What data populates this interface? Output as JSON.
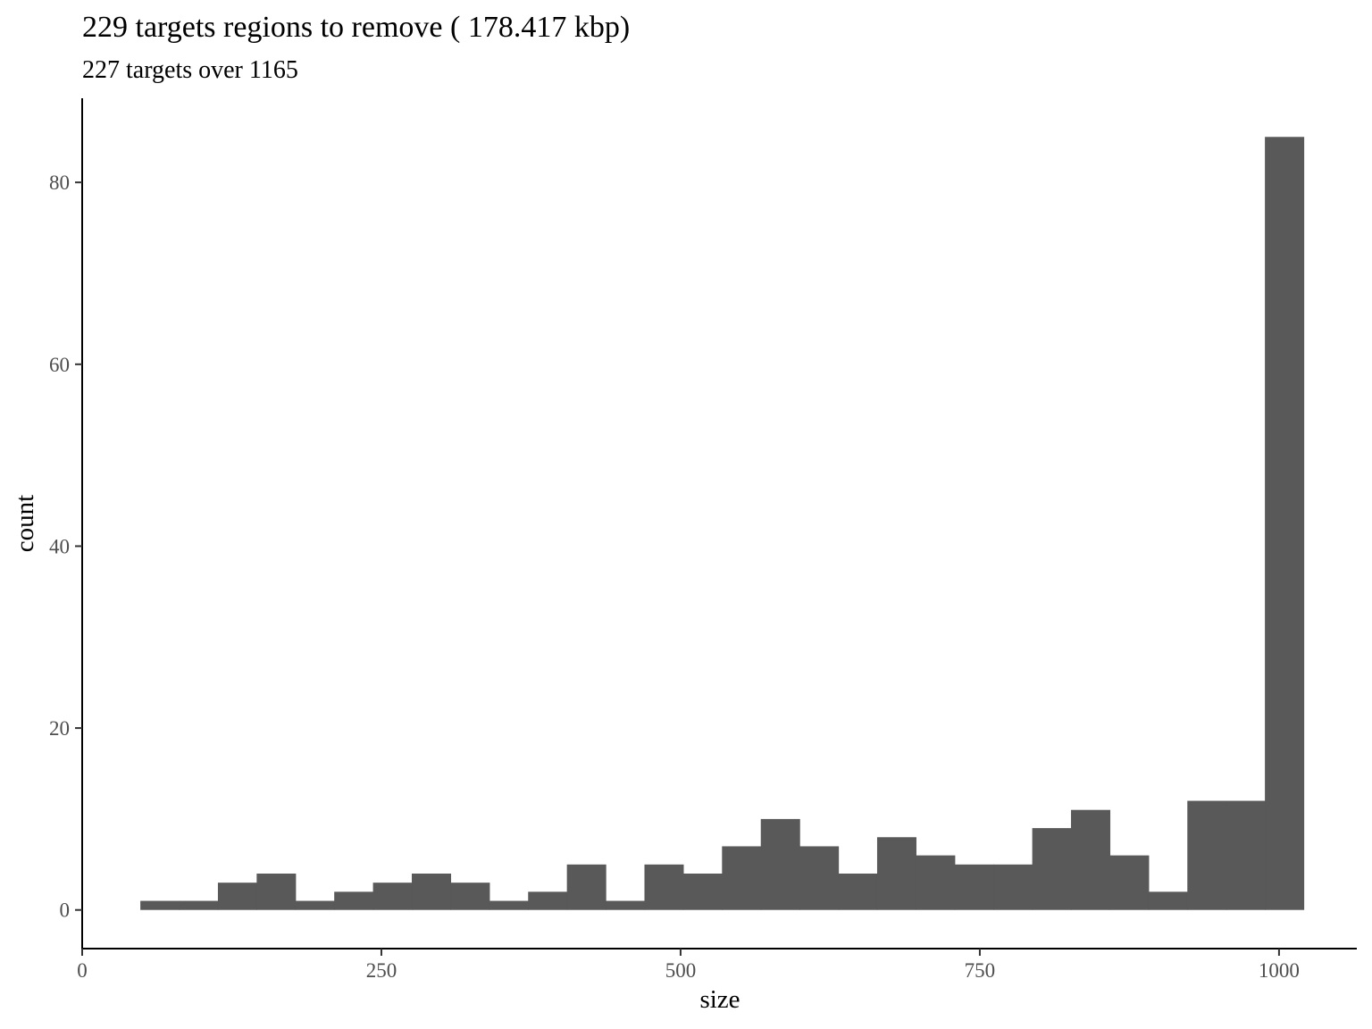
{
  "chart_data": {
    "type": "bar",
    "title": "229 targets regions to remove ( 178.417 kbp)",
    "subtitle": "227 targets over 1165",
    "xlabel": "size",
    "ylabel": "count",
    "xlim": [
      0,
      1065
    ],
    "ylim": [
      -4.25,
      89.25
    ],
    "x_ticks": [
      0,
      250,
      500,
      750,
      1000
    ],
    "y_ticks": [
      0,
      20,
      40,
      60,
      80
    ],
    "bar_color": "#595959",
    "bin_width": 32.4,
    "bins": [
      {
        "start": 48.6,
        "count": 1
      },
      {
        "start": 81.0,
        "count": 1
      },
      {
        "start": 113.4,
        "count": 3
      },
      {
        "start": 145.8,
        "count": 4
      },
      {
        "start": 178.2,
        "count": 1
      },
      {
        "start": 210.6,
        "count": 2
      },
      {
        "start": 243.0,
        "count": 3
      },
      {
        "start": 275.4,
        "count": 4
      },
      {
        "start": 307.8,
        "count": 3
      },
      {
        "start": 340.2,
        "count": 1
      },
      {
        "start": 372.6,
        "count": 2
      },
      {
        "start": 405.0,
        "count": 5
      },
      {
        "start": 437.4,
        "count": 1
      },
      {
        "start": 469.8,
        "count": 5
      },
      {
        "start": 502.2,
        "count": 4
      },
      {
        "start": 534.6,
        "count": 7
      },
      {
        "start": 567.0,
        "count": 10
      },
      {
        "start": 599.4,
        "count": 7
      },
      {
        "start": 631.8,
        "count": 4
      },
      {
        "start": 664.2,
        "count": 8
      },
      {
        "start": 696.6,
        "count": 6
      },
      {
        "start": 729.0,
        "count": 5
      },
      {
        "start": 761.4,
        "count": 5
      },
      {
        "start": 793.8,
        "count": 9
      },
      {
        "start": 826.2,
        "count": 11
      },
      {
        "start": 858.6,
        "count": 6
      },
      {
        "start": 891.0,
        "count": 2
      },
      {
        "start": 923.4,
        "count": 12
      },
      {
        "start": 955.8,
        "count": 12
      },
      {
        "start": 988.2,
        "count": 85
      }
    ]
  }
}
